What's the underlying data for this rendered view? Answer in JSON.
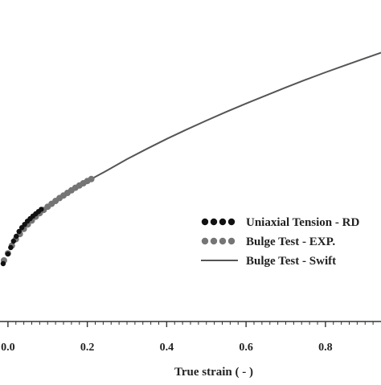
{
  "chart_data": {
    "type": "line",
    "xlabel": "True strain ( - )",
    "ylabel": "",
    "xlim": [
      -0.02,
      0.94
    ],
    "ylim": [
      0,
      1
    ],
    "x_ticks": [
      "0.0",
      "0.2",
      "0.4",
      "0.6",
      "0.8"
    ],
    "x_tick_values": [
      0.0,
      0.2,
      0.4,
      0.6,
      0.8
    ],
    "grid": false,
    "legend_position": "bottom-right",
    "series": [
      {
        "name": "Uniaxial Tension - RD",
        "style": "dots",
        "color": "#111111",
        "x": [
          -0.012,
          0.0,
          0.007,
          0.014,
          0.021,
          0.028,
          0.035,
          0.042,
          0.049,
          0.056,
          0.063,
          0.07,
          0.077,
          0.084
        ],
        "y": [
          0.18,
          0.21,
          0.23,
          0.25,
          0.265,
          0.28,
          0.292,
          0.302,
          0.312,
          0.32,
          0.328,
          0.335,
          0.342,
          0.349
        ]
      },
      {
        "name": "Bulge Test - EXP.",
        "style": "dots",
        "color": "#757575",
        "x": [
          -0.01,
          0.0,
          0.01,
          0.02,
          0.03,
          0.04,
          0.05,
          0.06,
          0.07,
          0.08,
          0.09,
          0.1,
          0.11,
          0.12,
          0.13,
          0.14,
          0.15,
          0.16,
          0.17,
          0.18,
          0.19,
          0.2,
          0.21
        ],
        "y": [
          0.19,
          0.212,
          0.236,
          0.256,
          0.272,
          0.288,
          0.302,
          0.314,
          0.326,
          0.337,
          0.347,
          0.357,
          0.366,
          0.375,
          0.384,
          0.392,
          0.4,
          0.408,
          0.416,
          0.423,
          0.43,
          0.437,
          0.443
        ]
      },
      {
        "name": "Bulge Test - Swift",
        "style": "line",
        "color": "#555555",
        "x": [
          0.21,
          0.25,
          0.3,
          0.35,
          0.4,
          0.45,
          0.5,
          0.55,
          0.6,
          0.65,
          0.7,
          0.75,
          0.8,
          0.85,
          0.9,
          0.94
        ],
        "y": [
          0.443,
          0.47,
          0.505,
          0.537,
          0.568,
          0.597,
          0.625,
          0.652,
          0.678,
          0.703,
          0.728,
          0.752,
          0.775,
          0.797,
          0.819,
          0.836
        ]
      }
    ]
  }
}
